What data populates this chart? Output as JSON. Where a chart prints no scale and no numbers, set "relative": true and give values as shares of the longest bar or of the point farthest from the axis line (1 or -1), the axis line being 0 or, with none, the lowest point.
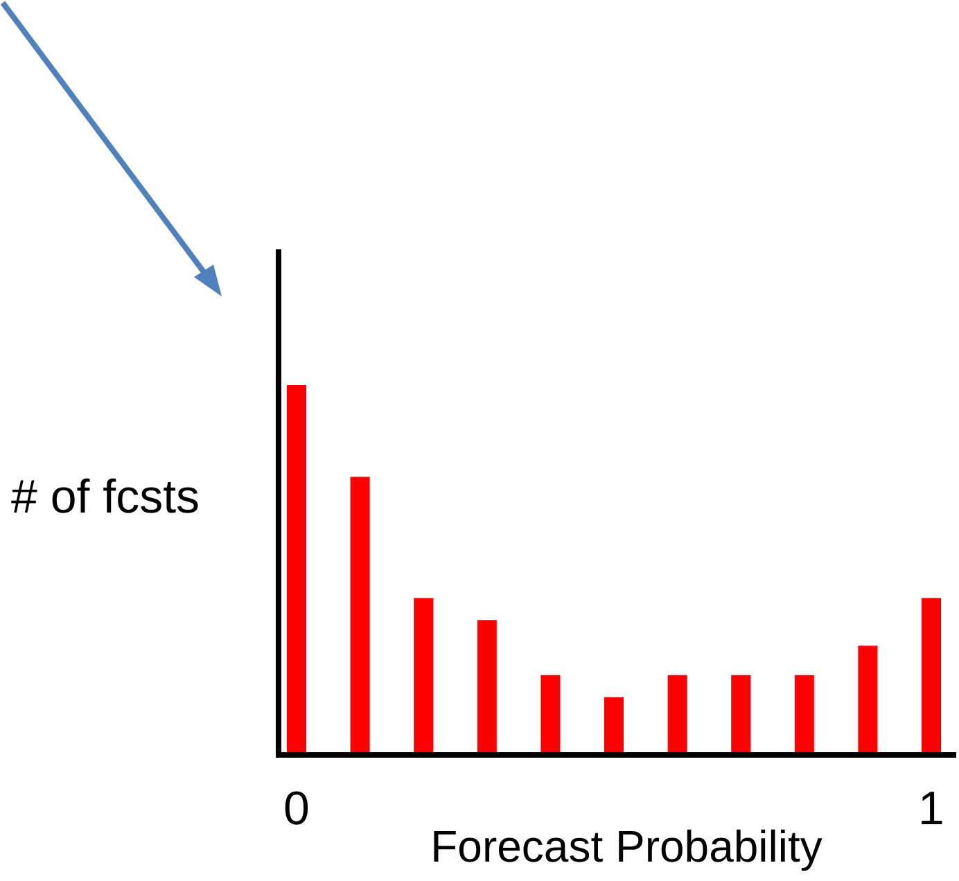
{
  "chart_data": {
    "type": "bar",
    "relative": true,
    "xlabel": "Forecast Probability",
    "ylabel": "# of fcsts",
    "x": [
      0,
      0.1,
      0.2,
      0.3,
      0.4,
      0.5,
      0.6,
      0.7,
      0.8,
      0.9,
      1
    ],
    "xlim": [
      0,
      1
    ],
    "xticks": [
      0,
      1
    ],
    "values": [
      1,
      0.75,
      0.42,
      0.36,
      0.21,
      0.15,
      0.21,
      0.21,
      0.21,
      0.29,
      0.42
    ],
    "color": "#ff0000"
  }
}
